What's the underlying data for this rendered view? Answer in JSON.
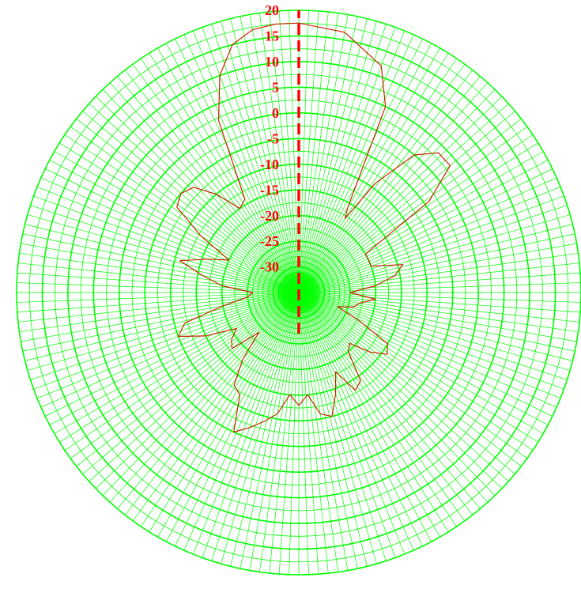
{
  "chart_data": {
    "type": "polar",
    "radial_axis": {
      "ticks": [
        20,
        15,
        10,
        5,
        0,
        -5,
        -10,
        -15,
        -20,
        -25,
        -30
      ],
      "tick_labels": [
        "20",
        "15",
        "10",
        "5",
        "0",
        "-5",
        "-10",
        "-15",
        "-20",
        "-25",
        "-30"
      ],
      "range": [
        -35,
        20
      ],
      "grid": true
    },
    "angular_axis": {
      "spokes_every_deg": 2,
      "grid": true,
      "zero_direction": "top",
      "direction": "clockwise"
    },
    "colors": {
      "grid": "#00ff00",
      "pattern": "#cc2200",
      "axis_line": "#ff0000",
      "tick_labels": "#ff0000"
    },
    "series": [
      {
        "angles_deg": [
          0,
          10,
          20,
          25,
          30,
          32,
          35,
          40,
          45,
          50,
          55,
          60,
          65,
          70,
          75,
          80,
          85,
          90,
          95,
          100,
          105,
          110,
          115,
          120,
          125,
          130,
          135,
          140,
          145,
          150,
          155,
          160,
          165,
          170,
          175,
          180,
          185,
          190,
          195,
          200,
          205,
          210,
          215,
          220,
          225,
          230,
          235,
          240,
          245,
          250,
          255,
          260,
          265,
          270,
          275,
          280,
          285,
          290,
          295,
          300,
          305,
          310,
          315,
          320,
          325,
          330,
          335,
          340,
          345,
          350,
          355,
          360
        ],
        "values": [
          17.5,
          16.5,
          12,
          5,
          -16,
          -18,
          -9,
          0,
          3.5,
          3.5,
          -4,
          -20,
          -20,
          -20,
          -14,
          -16,
          -20,
          -25,
          -20,
          -23,
          -24,
          -27,
          -22,
          -15,
          -14,
          -17,
          -21,
          -20,
          -14,
          -13,
          -18,
          -14,
          -10,
          -11,
          -15,
          -13,
          -15,
          -11,
          -9,
          -7,
          -5,
          -12,
          -13,
          -18,
          -24,
          -18,
          -19,
          -21,
          -15,
          -10,
          -12,
          -20,
          -25,
          -26,
          -20,
          -16,
          -11,
          -16,
          -20,
          -13,
          -6,
          -5,
          -6,
          -10,
          -15,
          -14,
          2,
          10,
          15,
          17,
          17.5,
          17.5
        ]
      }
    ]
  }
}
